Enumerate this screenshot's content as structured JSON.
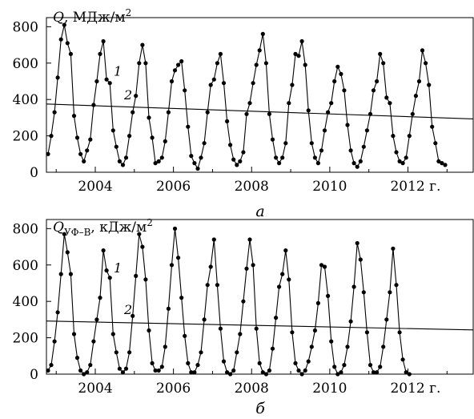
{
  "chart_data": [
    {
      "type": "line",
      "panel_label": "а",
      "ylabel_symbol": "Q",
      "ylabel_unit": ", МДж/м",
      "ylabel_sup": "2",
      "ylim": [
        0,
        850
      ],
      "yticks": [
        0,
        200,
        400,
        600,
        800
      ],
      "xlim": [
        2002.75,
        2013.67
      ],
      "xticks": [
        2004,
        2006,
        2008,
        2010,
        2012
      ],
      "xtick_labels": [
        "2004",
        "2006",
        "2008",
        "2010",
        "2012 г."
      ],
      "grid": false,
      "legend": "none",
      "series": [
        {
          "name": "1",
          "x_start": 2002.79,
          "x_step": 0.0833,
          "values": [
            100,
            200,
            330,
            520,
            730,
            810,
            710,
            650,
            310,
            190,
            100,
            60,
            120,
            180,
            370,
            500,
            650,
            720,
            510,
            490,
            230,
            140,
            60,
            40,
            80,
            200,
            330,
            420,
            600,
            700,
            600,
            300,
            190,
            50,
            60,
            80,
            170,
            330,
            500,
            560,
            590,
            610,
            450,
            250,
            90,
            50,
            20,
            80,
            160,
            330,
            480,
            510,
            600,
            650,
            490,
            280,
            150,
            70,
            40,
            60,
            110,
            320,
            380,
            490,
            590,
            670,
            760,
            600,
            320,
            180,
            80,
            50,
            80,
            160,
            380,
            480,
            650,
            640,
            720,
            590,
            340,
            160,
            80,
            50,
            120,
            230,
            330,
            380,
            500,
            580,
            540,
            450,
            260,
            120,
            50,
            30,
            60,
            140,
            230,
            320,
            450,
            500,
            650,
            600,
            410,
            380,
            200,
            110,
            60,
            50,
            80,
            200,
            320,
            420,
            500,
            670,
            600,
            480,
            250,
            160,
            60,
            50,
            40
          ]
        },
        {
          "name": "2",
          "x": [
            2002.75,
            2013.67
          ],
          "values": [
            375,
            293
          ]
        }
      ]
    },
    {
      "type": "line",
      "panel_label": "б",
      "ylabel_symbol": "Q",
      "ylabel_sub": "УФ–B",
      "ylabel_unit": ", кДж/м",
      "ylabel_sup": "2",
      "ylim": [
        0,
        850
      ],
      "yticks": [
        0,
        200,
        400,
        600,
        800
      ],
      "xlim": [
        2002.75,
        2013.67
      ],
      "xticks": [
        2004,
        2006,
        2008,
        2010,
        2012
      ],
      "xtick_labels": [
        "2004",
        "2006",
        "2008",
        "2010",
        "2012 г."
      ],
      "grid": false,
      "legend": "none",
      "series": [
        {
          "name": "1",
          "x_start": 2002.79,
          "x_step": 0.0833,
          "values": [
            20,
            50,
            180,
            340,
            550,
            770,
            670,
            550,
            220,
            90,
            20,
            0,
            10,
            50,
            180,
            300,
            420,
            680,
            570,
            530,
            220,
            120,
            30,
            10,
            30,
            120,
            320,
            540,
            770,
            700,
            520,
            240,
            60,
            20,
            20,
            40,
            150,
            360,
            600,
            800,
            640,
            420,
            210,
            60,
            10,
            10,
            50,
            120,
            300,
            490,
            590,
            740,
            490,
            250,
            70,
            10,
            0,
            20,
            120,
            220,
            400,
            580,
            740,
            600,
            250,
            60,
            10,
            0,
            20,
            140,
            310,
            480,
            550,
            680,
            520,
            230,
            60,
            20,
            0,
            20,
            70,
            150,
            240,
            390,
            600,
            590,
            430,
            180,
            40,
            0,
            10,
            50,
            150,
            290,
            480,
            720,
            630,
            450,
            230,
            50,
            10,
            10,
            40,
            150,
            300,
            450,
            690,
            490,
            230,
            80,
            10,
            0
          ]
        },
        {
          "name": "2",
          "x": [
            2002.75,
            2013.67
          ],
          "values": [
            292,
            243
          ]
        }
      ]
    }
  ]
}
